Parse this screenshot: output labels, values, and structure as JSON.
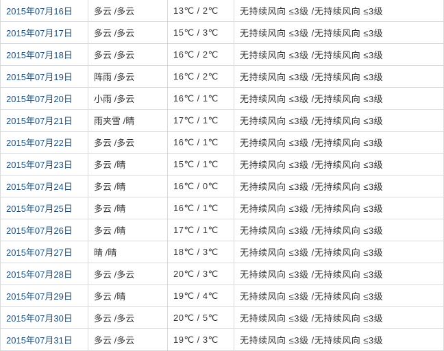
{
  "colors": {
    "date_link": "#1a4d7a",
    "cell_text": "#333333",
    "border": "#d9d9d9",
    "background": "#ffffff"
  },
  "table": {
    "rows": [
      {
        "date": "2015年07月16日",
        "weather": "多云 /多云",
        "temperature": "13℃ / 2℃",
        "wind": "无持续风向 ≤3级 /无持续风向 ≤3级"
      },
      {
        "date": "2015年07月17日",
        "weather": "多云 /多云",
        "temperature": "15℃ / 3℃",
        "wind": "无持续风向 ≤3级 /无持续风向 ≤3级"
      },
      {
        "date": "2015年07月18日",
        "weather": "多云 /多云",
        "temperature": "16℃ / 2℃",
        "wind": "无持续风向 ≤3级 /无持续风向 ≤3级"
      },
      {
        "date": "2015年07月19日",
        "weather": "阵雨 /多云",
        "temperature": "16℃ / 2℃",
        "wind": "无持续风向 ≤3级 /无持续风向 ≤3级"
      },
      {
        "date": "2015年07月20日",
        "weather": "小雨 /多云",
        "temperature": "16℃ / 1℃",
        "wind": "无持续风向 ≤3级 /无持续风向 ≤3级"
      },
      {
        "date": "2015年07月21日",
        "weather": "雨夹雪 /晴",
        "temperature": "17℃ / 1℃",
        "wind": "无持续风向 ≤3级 /无持续风向 ≤3级"
      },
      {
        "date": "2015年07月22日",
        "weather": "多云 /多云",
        "temperature": "16℃ / 1℃",
        "wind": "无持续风向 ≤3级 /无持续风向 ≤3级"
      },
      {
        "date": "2015年07月23日",
        "weather": "多云 /晴",
        "temperature": "15℃ / 1℃",
        "wind": "无持续风向 ≤3级 /无持续风向 ≤3级"
      },
      {
        "date": "2015年07月24日",
        "weather": "多云 /晴",
        "temperature": "16℃ / 0℃",
        "wind": "无持续风向 ≤3级 /无持续风向 ≤3级"
      },
      {
        "date": "2015年07月25日",
        "weather": "多云 /晴",
        "temperature": "16℃ / 1℃",
        "wind": "无持续风向 ≤3级 /无持续风向 ≤3级"
      },
      {
        "date": "2015年07月26日",
        "weather": "多云 /晴",
        "temperature": "17℃ / 1℃",
        "wind": "无持续风向 ≤3级 /无持续风向 ≤3级"
      },
      {
        "date": "2015年07月27日",
        "weather": "晴 /晴",
        "temperature": "18℃ / 3℃",
        "wind": "无持续风向 ≤3级 /无持续风向 ≤3级"
      },
      {
        "date": "2015年07月28日",
        "weather": "多云 /多云",
        "temperature": "20℃ / 3℃",
        "wind": "无持续风向 ≤3级 /无持续风向 ≤3级"
      },
      {
        "date": "2015年07月29日",
        "weather": "多云 /晴",
        "temperature": "19℃ / 4℃",
        "wind": "无持续风向 ≤3级 /无持续风向 ≤3级"
      },
      {
        "date": "2015年07月30日",
        "weather": "多云 /多云",
        "temperature": "20℃ / 5℃",
        "wind": "无持续风向 ≤3级 /无持续风向 ≤3级"
      },
      {
        "date": "2015年07月31日",
        "weather": "多云 /多云",
        "temperature": "19℃ / 3℃",
        "wind": "无持续风向 ≤3级 /无持续风向 ≤3级"
      }
    ]
  }
}
